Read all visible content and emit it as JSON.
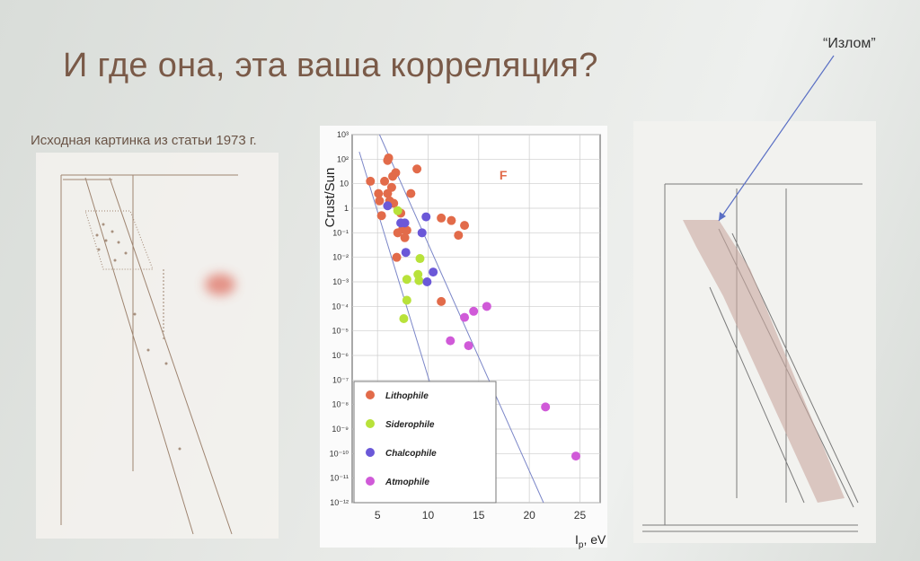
{
  "slide": {
    "title": "И где она, эта ваша корреляция?",
    "annotation": "“Излом”",
    "left_caption": "Исходная картинка из статьи 1973 г."
  },
  "chart_data": {
    "type": "scatter",
    "ylabel": "Crust/Sun",
    "xlabel": "I",
    "xlabel_sub": "p",
    "xlabel_unit": ", eV",
    "log_y": true,
    "xlim": [
      2.5,
      27
    ],
    "ylim_exp": [
      -12,
      3
    ],
    "x_ticks": [
      "5",
      "10",
      "15",
      "20",
      "25"
    ],
    "x_tick_values": [
      5,
      10,
      15,
      20,
      25
    ],
    "y_tick_exponents": [
      3,
      2,
      1,
      0,
      -1,
      -2,
      -3,
      -4,
      -5,
      -6,
      -7,
      -8,
      -9,
      -10,
      -11,
      -12
    ],
    "y_tick_labels": [
      "10³",
      "10²",
      "10",
      "1",
      "10⁻¹",
      "10⁻²",
      "10⁻³",
      "10⁻⁴",
      "10⁻⁵",
      "10⁻⁶",
      "10⁻⁷",
      "10⁻⁸",
      "10⁻⁹",
      "10⁻¹⁰",
      "10⁻¹¹",
      "10⁻¹²"
    ],
    "grid": true,
    "legend_position": "bottom-left",
    "annotations": [
      {
        "text": "F",
        "x": 17.4,
        "y_exp": 0.85,
        "color": "#e26b4a"
      }
    ],
    "series": [
      {
        "name": "Lithophile",
        "color": "#e26b4a",
        "points": [
          [
            4.3,
            1.1
          ],
          [
            5.1,
            0.6
          ],
          [
            5.2,
            0.3
          ],
          [
            5.4,
            -0.3
          ],
          [
            5.7,
            1.1
          ],
          [
            6.0,
            0.6
          ],
          [
            6.0,
            1.95
          ],
          [
            6.1,
            2.05
          ],
          [
            6.2,
            0.3
          ],
          [
            6.4,
            0.85
          ],
          [
            6.5,
            1.3
          ],
          [
            6.6,
            0.2
          ],
          [
            6.8,
            1.45
          ],
          [
            7.0,
            -1.0
          ],
          [
            7.3,
            -0.2
          ],
          [
            7.5,
            -0.85
          ],
          [
            7.7,
            -1.2
          ],
          [
            7.9,
            -0.9
          ],
          [
            8.3,
            0.6
          ],
          [
            8.9,
            1.6
          ],
          [
            6.9,
            -2.0
          ],
          [
            11.3,
            -0.4
          ],
          [
            12.3,
            -0.5
          ],
          [
            13.0,
            -1.1
          ],
          [
            13.6,
            -0.7
          ],
          [
            11.3,
            -3.8
          ]
        ]
      },
      {
        "name": "Siderophile",
        "color": "#b8e23a",
        "points": [
          [
            7.0,
            -0.1
          ],
          [
            7.6,
            -4.5
          ],
          [
            7.9,
            -3.75
          ],
          [
            7.9,
            -2.9
          ],
          [
            9.0,
            -2.7
          ],
          [
            9.1,
            -2.95
          ],
          [
            9.2,
            -2.05
          ]
        ]
      },
      {
        "name": "Chalcophile",
        "color": "#6b58d8",
        "points": [
          [
            6.0,
            0.1
          ],
          [
            7.3,
            -0.6
          ],
          [
            7.7,
            -0.6
          ],
          [
            7.8,
            -1.8
          ],
          [
            9.4,
            -1.0
          ],
          [
            9.8,
            -0.35
          ],
          [
            9.9,
            -3.0
          ],
          [
            10.5,
            -2.6
          ]
        ]
      },
      {
        "name": "Atmophile",
        "color": "#d05ad8",
        "points": [
          [
            12.2,
            -5.4
          ],
          [
            13.6,
            -4.45
          ],
          [
            14.0,
            -5.6
          ],
          [
            14.5,
            -4.2
          ],
          [
            15.8,
            -4.0
          ],
          [
            21.6,
            -8.1
          ],
          [
            24.6,
            -10.1
          ]
        ]
      }
    ]
  }
}
